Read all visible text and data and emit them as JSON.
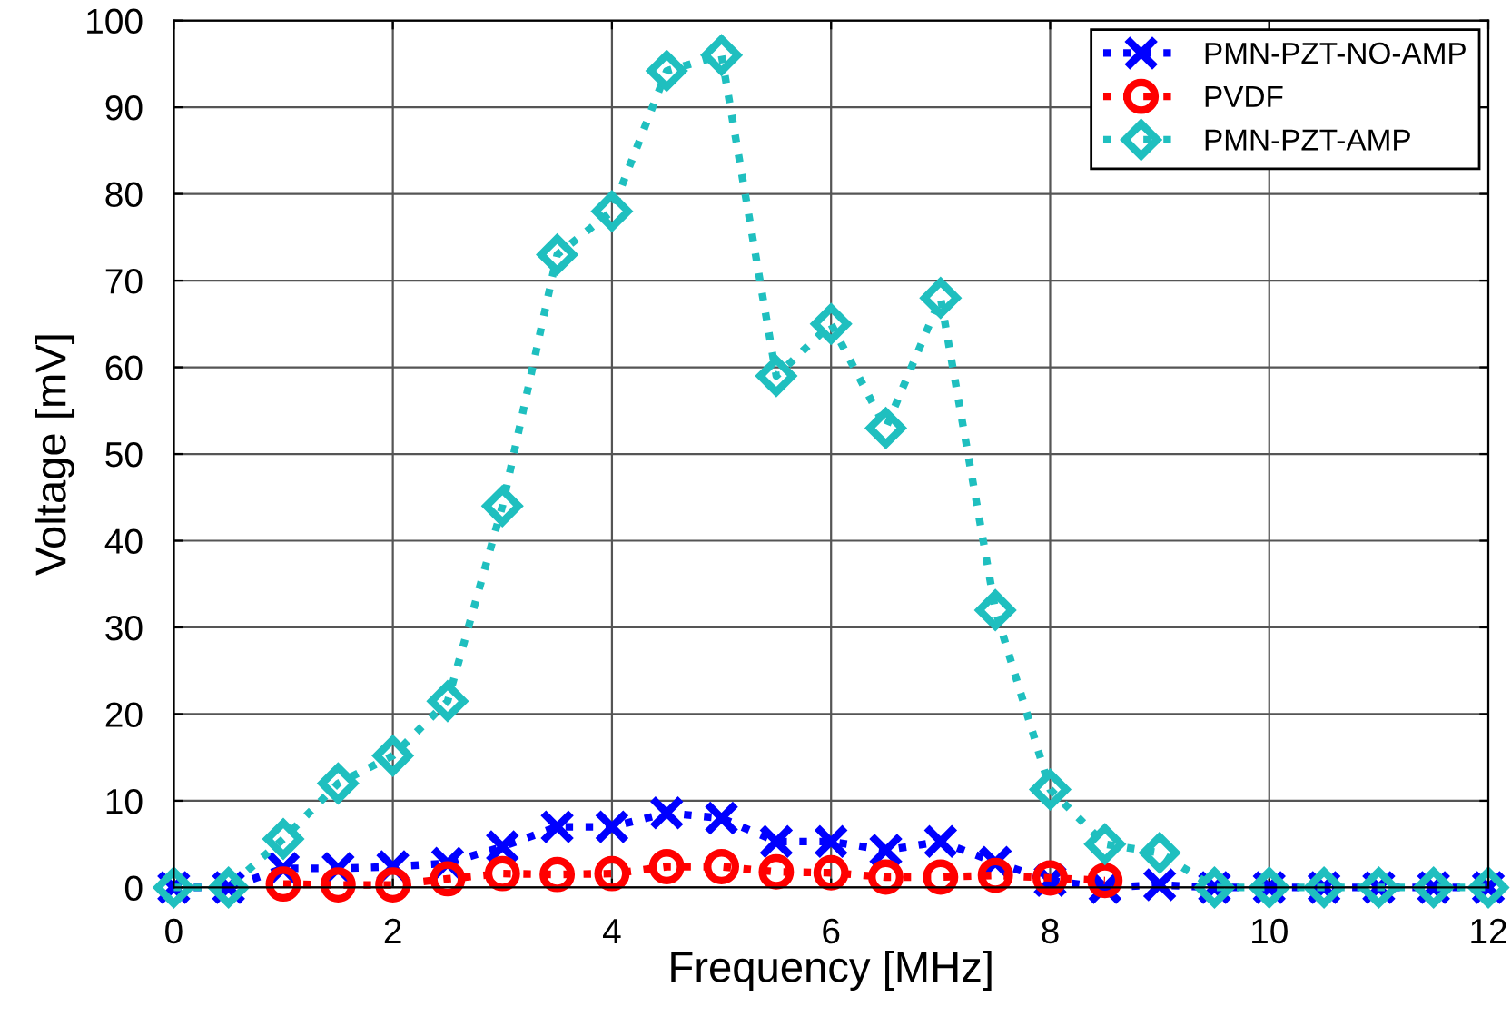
{
  "chart_data": {
    "type": "line",
    "xlabel": "Frequency [MHz]",
    "ylabel": "Voltage [mV]",
    "x": [
      0,
      0.5,
      1,
      1.5,
      2,
      2.5,
      3,
      3.5,
      4,
      4.5,
      5,
      5.5,
      6,
      6.5,
      7,
      7.5,
      8,
      8.5,
      9,
      9.5,
      10,
      10.5,
      11,
      11.5,
      12
    ],
    "xlim": [
      0,
      12
    ],
    "xticks": [
      0,
      2,
      4,
      6,
      8,
      10,
      12
    ],
    "ylim": [
      0,
      100
    ],
    "yticks": [
      0,
      10,
      20,
      30,
      40,
      50,
      60,
      70,
      80,
      90,
      100
    ],
    "grid": true,
    "legend": "top right",
    "line_style": "dotted",
    "series": [
      {
        "name": "PMN-PZT-NO-AMP",
        "color": "#0000ff",
        "marker": "cross",
        "values": [
          0,
          0,
          2.2,
          2.2,
          2.4,
          2.8,
          4.7,
          7,
          7,
          8.6,
          8,
          5.3,
          5.3,
          4.3,
          5.3,
          2.9,
          0.8,
          0,
          0.3,
          0,
          0,
          0,
          0,
          0,
          0
        ]
      },
      {
        "name": "PVDF",
        "color": "#ff0000",
        "marker": "circle",
        "x": [
          1,
          1.5,
          2,
          2.5,
          3,
          3.5,
          4,
          4.5,
          5,
          5.5,
          6,
          6.5,
          7,
          7.5,
          8,
          8.5
        ],
        "values": [
          0.4,
          0.3,
          0.3,
          1,
          1.6,
          1.5,
          1.6,
          2.4,
          2.4,
          1.8,
          1.7,
          1.2,
          1.2,
          1.4,
          1.1,
          0.8
        ]
      },
      {
        "name": "PMN-PZT-AMP",
        "color": "#1fbfbf",
        "marker": "diamond",
        "values": [
          0,
          0,
          5.6,
          12,
          15.2,
          21.5,
          44,
          73,
          78,
          94.2,
          96,
          59,
          65,
          53,
          68,
          32,
          11.3,
          5,
          4,
          0,
          0,
          0,
          0,
          0,
          0
        ]
      }
    ]
  }
}
